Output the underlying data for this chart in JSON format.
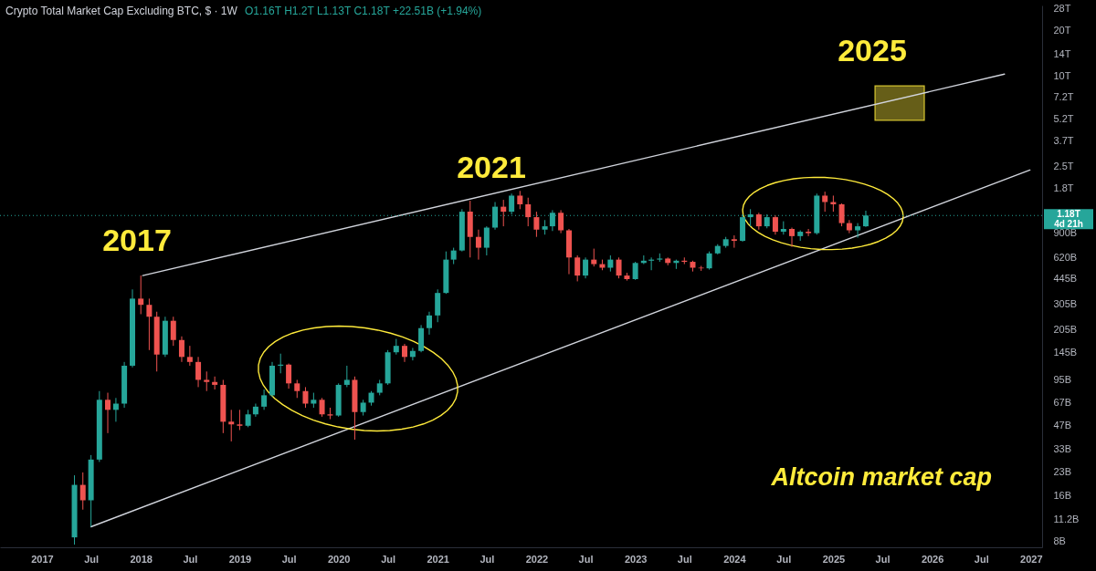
{
  "chart_data": {
    "type": "candlestick",
    "title": "Crypto Total Market Cap Excluding BTC, $ · 1W",
    "subtitle": "O1.16T H1.2T L1.13T C1.18T +22.51B (+1.94%)",
    "x": [
      "2017-05",
      "2017-06",
      "2017-07",
      "2017-08",
      "2017-09",
      "2017-10",
      "2017-11",
      "2017-12",
      "2018-01",
      "2018-02",
      "2018-03",
      "2018-04",
      "2018-05",
      "2018-06",
      "2018-07",
      "2018-08",
      "2018-09",
      "2018-10",
      "2018-11",
      "2018-12",
      "2019-01",
      "2019-02",
      "2019-03",
      "2019-04",
      "2019-05",
      "2019-06",
      "2019-07",
      "2019-08",
      "2019-09",
      "2019-10",
      "2019-11",
      "2019-12",
      "2020-01",
      "2020-02",
      "2020-03",
      "2020-04",
      "2020-05",
      "2020-06",
      "2020-07",
      "2020-08",
      "2020-09",
      "2020-10",
      "2020-11",
      "2020-12",
      "2021-01",
      "2021-02",
      "2021-03",
      "2021-04",
      "2021-05",
      "2021-06",
      "2021-07",
      "2021-08",
      "2021-09",
      "2021-10",
      "2021-11",
      "2021-12",
      "2022-01",
      "2022-02",
      "2022-03",
      "2022-04",
      "2022-05",
      "2022-06",
      "2022-07",
      "2022-08",
      "2022-09",
      "2022-10",
      "2022-11",
      "2022-12",
      "2023-01",
      "2023-02",
      "2023-03",
      "2023-04",
      "2023-05",
      "2023-06",
      "2023-07",
      "2023-08",
      "2023-09",
      "2023-10",
      "2023-11",
      "2023-12",
      "2024-01",
      "2024-02",
      "2024-03",
      "2024-04",
      "2024-05",
      "2024-06",
      "2024-07",
      "2024-08",
      "2024-09",
      "2024-10",
      "2024-11",
      "2024-12",
      "2025-01",
      "2025-02",
      "2025-03",
      "2025-04",
      "2025-05"
    ],
    "ohlc": [
      [
        8500000000.0,
        22000000000.0,
        7600000000.0,
        19000000000.0
      ],
      [
        19000000000.0,
        23000000000.0,
        13000000000.0,
        15000000000.0
      ],
      [
        15000000000.0,
        30000000000.0,
        10000000000.0,
        28000000000.0
      ],
      [
        28000000000.0,
        80000000000.0,
        27000000000.0,
        70000000000.0
      ],
      [
        70000000000.0,
        78000000000.0,
        42000000000.0,
        60000000000.0
      ],
      [
        60000000000.0,
        72000000000.0,
        50000000000.0,
        66000000000.0
      ],
      [
        66000000000.0,
        125000000000.0,
        62000000000.0,
        118000000000.0
      ],
      [
        118000000000.0,
        380000000000.0,
        115000000000.0,
        330000000000.0
      ],
      [
        330000000000.0,
        470000000000.0,
        260000000000.0,
        300000000000.0
      ],
      [
        300000000000.0,
        330000000000.0,
        150000000000.0,
        250000000000.0
      ],
      [
        250000000000.0,
        270000000000.0,
        108000000000.0,
        140000000000.0
      ],
      [
        140000000000.0,
        250000000000.0,
        135000000000.0,
        235000000000.0
      ],
      [
        235000000000.0,
        250000000000.0,
        160000000000.0,
        175000000000.0
      ],
      [
        175000000000.0,
        185000000000.0,
        125000000000.0,
        135000000000.0
      ],
      [
        135000000000.0,
        160000000000.0,
        118000000000.0,
        125000000000.0
      ],
      [
        125000000000.0,
        135000000000.0,
        85000000000.0,
        95000000000.0
      ],
      [
        95000000000.0,
        108000000000.0,
        80000000000.0,
        92000000000.0
      ],
      [
        92000000000.0,
        100000000000.0,
        82000000000.0,
        88000000000.0
      ],
      [
        88000000000.0,
        95000000000.0,
        42000000000.0,
        50000000000.0
      ],
      [
        50000000000.0,
        60000000000.0,
        37000000000.0,
        48000000000.0
      ],
      [
        48000000000.0,
        60000000000.0,
        44000000000.0,
        47000000000.0
      ],
      [
        47000000000.0,
        60000000000.0,
        46000000000.0,
        56000000000.0
      ],
      [
        56000000000.0,
        66000000000.0,
        54000000000.0,
        63000000000.0
      ],
      [
        63000000000.0,
        82000000000.0,
        60000000000.0,
        75000000000.0
      ],
      [
        75000000000.0,
        125000000000.0,
        73000000000.0,
        118000000000.0
      ],
      [
        118000000000.0,
        142000000000.0,
        105000000000.0,
        120000000000.0
      ],
      [
        120000000000.0,
        122000000000.0,
        83000000000.0,
        90000000000.0
      ],
      [
        90000000000.0,
        95000000000.0,
        72000000000.0,
        80000000000.0
      ],
      [
        80000000000.0,
        85000000000.0,
        62000000000.0,
        66000000000.0
      ],
      [
        66000000000.0,
        78000000000.0,
        62000000000.0,
        70000000000.0
      ],
      [
        70000000000.0,
        72000000000.0,
        54000000000.0,
        56000000000.0
      ],
      [
        56000000000.0,
        62000000000.0,
        52000000000.0,
        55000000000.0
      ],
      [
        55000000000.0,
        90000000000.0,
        54000000000.0,
        88000000000.0
      ],
      [
        88000000000.0,
        118000000000.0,
        85000000000.0,
        95000000000.0
      ],
      [
        95000000000.0,
        100000000000.0,
        38000000000.0,
        58000000000.0
      ],
      [
        58000000000.0,
        70000000000.0,
        55000000000.0,
        67000000000.0
      ],
      [
        67000000000.0,
        80000000000.0,
        64000000000.0,
        78000000000.0
      ],
      [
        78000000000.0,
        95000000000.0,
        75000000000.0,
        90000000000.0
      ],
      [
        90000000000.0,
        150000000000.0,
        88000000000.0,
        145000000000.0
      ],
      [
        145000000000.0,
        178000000000.0,
        140000000000.0,
        160000000000.0
      ],
      [
        160000000000.0,
        165000000000.0,
        125000000000.0,
        135000000000.0
      ],
      [
        135000000000.0,
        155000000000.0,
        128000000000.0,
        148000000000.0
      ],
      [
        148000000000.0,
        220000000000.0,
        145000000000.0,
        210000000000.0
      ],
      [
        210000000000.0,
        270000000000.0,
        190000000000.0,
        255000000000.0
      ],
      [
        255000000000.0,
        380000000000.0,
        230000000000.0,
        360000000000.0
      ],
      [
        360000000000.0,
        680000000000.0,
        355000000000.0,
        600000000000.0
      ],
      [
        600000000000.0,
        720000000000.0,
        560000000000.0,
        690000000000.0
      ],
      [
        690000000000.0,
        1300000000000.0,
        680000000000.0,
        1250000000000.0
      ],
      [
        1250000000000.0,
        1480000000000.0,
        620000000000.0,
        850000000000.0
      ],
      [
        850000000000.0,
        950000000000.0,
        600000000000.0,
        720000000000.0
      ],
      [
        720000000000.0,
        1000000000000.0,
        640000000000.0,
        980000000000.0
      ],
      [
        980000000000.0,
        1450000000000.0,
        950000000000.0,
        1350000000000.0
      ],
      [
        1350000000000.0,
        1500000000000.0,
        1000000000000.0,
        1250000000000.0
      ],
      [
        1250000000000.0,
        1650000000000.0,
        1200000000000.0,
        1600000000000.0
      ],
      [
        1600000000000.0,
        1720000000000.0,
        1300000000000.0,
        1400000000000.0
      ],
      [
        1400000000000.0,
        1550000000000.0,
        1000000000000.0,
        1150000000000.0
      ],
      [
        1150000000000.0,
        1250000000000.0,
        850000000000.0,
        950000000000.0
      ],
      [
        950000000000.0,
        1100000000000.0,
        880000000000.0,
        1000000000000.0
      ],
      [
        1000000000000.0,
        1280000000000.0,
        930000000000.0,
        1230000000000.0
      ],
      [
        1230000000000.0,
        1280000000000.0,
        900000000000.0,
        940000000000.0
      ],
      [
        940000000000.0,
        960000000000.0,
        480000000000.0,
        620000000000.0
      ],
      [
        620000000000.0,
        640000000000.0,
        430000000000.0,
        470000000000.0
      ],
      [
        470000000000.0,
        620000000000.0,
        450000000000.0,
        600000000000.0
      ],
      [
        600000000000.0,
        710000000000.0,
        540000000000.0,
        560000000000.0
      ],
      [
        560000000000.0,
        600000000000.0,
        510000000000.0,
        530000000000.0
      ],
      [
        530000000000.0,
        640000000000.0,
        500000000000.0,
        600000000000.0
      ],
      [
        600000000000.0,
        620000000000.0,
        450000000000.0,
        470000000000.0
      ],
      [
        470000000000.0,
        490000000000.0,
        435000000000.0,
        445000000000.0
      ],
      [
        445000000000.0,
        580000000000.0,
        440000000000.0,
        570000000000.0
      ],
      [
        570000000000.0,
        640000000000.0,
        560000000000.0,
        590000000000.0
      ],
      [
        590000000000.0,
        620000000000.0,
        510000000000.0,
        600000000000.0
      ],
      [
        600000000000.0,
        660000000000.0,
        580000000000.0,
        610000000000.0
      ],
      [
        610000000000.0,
        620000000000.0,
        550000000000.0,
        570000000000.0
      ],
      [
        570000000000.0,
        600000000000.0,
        520000000000.0,
        590000000000.0
      ],
      [
        590000000000.0,
        620000000000.0,
        560000000000.0,
        580000000000.0
      ],
      [
        580000000000.0,
        590000000000.0,
        500000000000.0,
        530000000000.0
      ],
      [
        530000000000.0,
        545000000000.0,
        505000000000.0,
        525000000000.0
      ],
      [
        525000000000.0,
        680000000000.0,
        515000000000.0,
        660000000000.0
      ],
      [
        660000000000.0,
        760000000000.0,
        650000000000.0,
        740000000000.0
      ],
      [
        740000000000.0,
        850000000000.0,
        720000000000.0,
        820000000000.0
      ],
      [
        820000000000.0,
        870000000000.0,
        720000000000.0,
        800000000000.0
      ],
      [
        800000000000.0,
        1200000000000.0,
        790000000000.0,
        1150000000000.0
      ],
      [
        1150000000000.0,
        1300000000000.0,
        1000000000000.0,
        1200000000000.0
      ],
      [
        1200000000000.0,
        1230000000000.0,
        950000000000.0,
        1000000000000.0
      ],
      [
        1000000000000.0,
        1200000000000.0,
        970000000000.0,
        1150000000000.0
      ],
      [
        1150000000000.0,
        1180000000000.0,
        880000000000.0,
        920000000000.0
      ],
      [
        920000000000.0,
        1080000000000.0,
        880000000000.0,
        960000000000.0
      ],
      [
        960000000000.0,
        980000000000.0,
        730000000000.0,
        860000000000.0
      ],
      [
        860000000000.0,
        940000000000.0,
        800000000000.0,
        920000000000.0
      ],
      [
        920000000000.0,
        960000000000.0,
        860000000000.0,
        900000000000.0
      ],
      [
        900000000000.0,
        1650000000000.0,
        880000000000.0,
        1600000000000.0
      ],
      [
        1600000000000.0,
        1700000000000.0,
        1250000000000.0,
        1450000000000.0
      ],
      [
        1450000000000.0,
        1600000000000.0,
        1250000000000.0,
        1400000000000.0
      ],
      [
        1400000000000.0,
        1420000000000.0,
        1000000000000.0,
        1050000000000.0
      ],
      [
        1050000000000.0,
        1100000000000.0,
        900000000000.0,
        940000000000.0
      ],
      [
        940000000000.0,
        1050000000000.0,
        840000000000.0,
        1000000000000.0
      ],
      [
        1000000000000.0,
        1270000000000.0,
        990000000000.0,
        1180000000000.0
      ]
    ],
    "colors": [
      "#26a69a",
      "#ef5350",
      "#26a69a",
      "#26a69a",
      "#ef5350",
      "#26a69a",
      "#26a69a",
      "#26a69a",
      "#ef5350",
      "#ef5350",
      "#ef5350",
      "#26a69a",
      "#ef5350",
      "#ef5350",
      "#ef5350",
      "#ef5350",
      "#ef5350",
      "#ef5350",
      "#ef5350",
      "#ef5350",
      "#ef5350",
      "#26a69a",
      "#26a69a",
      "#26a69a",
      "#26a69a",
      "#26a69a",
      "#ef5350",
      "#ef5350",
      "#ef5350",
      "#26a69a",
      "#ef5350",
      "#ef5350",
      "#26a69a",
      "#26a69a",
      "#ef5350",
      "#26a69a",
      "#26a69a",
      "#26a69a",
      "#26a69a",
      "#26a69a",
      "#ef5350",
      "#26a69a",
      "#26a69a",
      "#26a69a",
      "#26a69a",
      "#26a69a",
      "#26a69a",
      "#26a69a",
      "#ef5350",
      "#ef5350",
      "#26a69a",
      "#26a69a",
      "#ef5350",
      "#26a69a",
      "#ef5350",
      "#ef5350",
      "#ef5350",
      "#26a69a",
      "#26a69a",
      "#ef5350",
      "#ef5350",
      "#ef5350",
      "#26a69a",
      "#ef5350",
      "#ef5350",
      "#26a69a",
      "#ef5350",
      "#ef5350",
      "#26a69a",
      "#26a69a",
      "#26a69a",
      "#26a69a",
      "#ef5350",
      "#26a69a",
      "#ef5350",
      "#ef5350",
      "#ef5350",
      "#26a69a",
      "#26a69a",
      "#26a69a",
      "#ef5350",
      "#26a69a",
      "#26a69a",
      "#ef5350",
      "#26a69a",
      "#ef5350",
      "#26a69a",
      "#ef5350",
      "#26a69a",
      "#ef5350",
      "#26a69a",
      "#ef5350",
      "#ef5350",
      "#ef5350",
      "#ef5350",
      "#26a69a",
      "#26a69a"
    ],
    "series": [
      {
        "type": "line",
        "color": "#ffeb3b",
        "x": [
          "2025-06-04",
          "2025-12-03"
        ],
        "values": [
          null,
          null
        ],
        "lower": [
          5080000000000.0,
          5080000000000.0
        ],
        "upper": [
          8600000000000.0,
          8600000000000.0
        ]
      },
      {
        "type": "line",
        "color": "#d1d4dc",
        "x": [
          "2018-01-08",
          "2026-09-25"
        ],
        "values": [
          470000000000.0,
          10300000000000.0
        ]
      },
      {
        "type": "line",
        "color": "#d1d4dc",
        "x": [
          "2017-07-01",
          "2026-12-28"
        ],
        "values": [
          10000000000.0,
          2370000000000.0
        ]
      }
    ],
    "ref_lines": [
      {
        "axis": "y",
        "value": 1180000000000.0,
        "label": "1.18T\n4d 21h",
        "color": "#26a69a",
        "line_style": "dotted"
      }
    ],
    "annotations": [
      "2017",
      "2021",
      "2025",
      "Altcoin market cap"
    ],
    "log": true,
    "grid": false,
    "xlim": [
      "2016-07-30",
      "2027-02-11"
    ],
    "xticks": [
      {
        "value": "2017-01-01",
        "label": "2017"
      },
      {
        "value": "2017-07-01",
        "label": "Jul"
      },
      {
        "value": "2018-01-01",
        "label": "2018"
      },
      {
        "value": "2018-07-01",
        "label": "Jul"
      },
      {
        "value": "2019-01-01",
        "label": "2019"
      },
      {
        "value": "2019-07-01",
        "label": "Jul"
      },
      {
        "value": "2020-01-01",
        "label": "2020"
      },
      {
        "value": "2020-07-01",
        "label": "Jul"
      },
      {
        "value": "2021-01-01",
        "label": "2021"
      },
      {
        "value": "2021-07-01",
        "label": "Jul"
      },
      {
        "value": "2022-01-01",
        "label": "2022"
      },
      {
        "value": "2022-07-01",
        "label": "Jul"
      },
      {
        "value": "2023-01-01",
        "label": "2023"
      },
      {
        "value": "2023-07-01",
        "label": "Jul"
      },
      {
        "value": "2024-01-01",
        "label": "2024"
      },
      {
        "value": "2024-07-01",
        "label": "Jul"
      },
      {
        "value": "2025-01-01",
        "label": "2025"
      },
      {
        "value": "2025-07-01",
        "label": "Jul"
      },
      {
        "value": "2026-01-01",
        "label": "2026"
      },
      {
        "value": "2026-07-01",
        "label": "Jul"
      },
      {
        "value": "2027-01-01",
        "label": "2027"
      }
    ],
    "ylim": [
      7300000000.0,
      29500000000000.0
    ],
    "yticks": [
      {
        "value": 28000000000000.0,
        "label": "28T"
      },
      {
        "value": 20000000000000.0,
        "label": "20T"
      },
      {
        "value": 14000000000000.0,
        "label": "14T"
      },
      {
        "value": 10000000000000.0,
        "label": "10T"
      },
      {
        "value": 7200000000000.0,
        "label": "7.2T"
      },
      {
        "value": 5200000000000.0,
        "label": "5.2T"
      },
      {
        "value": 3700000000000.0,
        "label": "3.7T"
      },
      {
        "value": 2500000000000.0,
        "label": "2.5T"
      },
      {
        "value": 1800000000000.0,
        "label": "1.8T"
      },
      {
        "value": 900000000000.0,
        "label": "900B"
      },
      {
        "value": 620000000000.0,
        "label": "620B"
      },
      {
        "value": 445000000000.0,
        "label": "445B"
      },
      {
        "value": 305000000000.0,
        "label": "305B"
      },
      {
        "value": 205000000000.0,
        "label": "205B"
      },
      {
        "value": 145000000000.0,
        "label": "145B"
      },
      {
        "value": 95000000000.0,
        "label": "95B"
      },
      {
        "value": 67000000000.0,
        "label": "67B"
      },
      {
        "value": 47000000000.0,
        "label": "47B"
      },
      {
        "value": 33000000000.0,
        "label": "33B"
      },
      {
        "value": 23000000000.0,
        "label": "23B"
      },
      {
        "value": 16000000000.0,
        "label": "16B"
      },
      {
        "value": 11200000000.0,
        "label": "11.2B"
      },
      {
        "value": 8000000000.0,
        "label": "8B"
      }
    ]
  }
}
